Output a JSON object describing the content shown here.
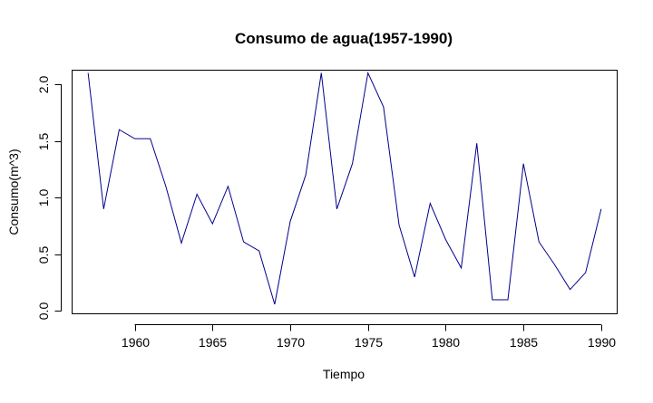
{
  "chart_data": {
    "type": "line",
    "title": "Consumo de agua(1957-1990)",
    "xlabel": "Tiempo",
    "ylabel": "Consumo(m^3)",
    "xlim": [
      1956,
      1991
    ],
    "ylim": [
      -0.02,
      2.12
    ],
    "xticks": [
      1960,
      1965,
      1970,
      1975,
      1980,
      1985,
      1990
    ],
    "xtick_labels": [
      "1960",
      "1965",
      "1970",
      "1975",
      "1980",
      "1985",
      "1990"
    ],
    "yticks": [
      0.0,
      0.5,
      1.0,
      1.5,
      2.0
    ],
    "ytick_labels": [
      "0.0",
      "0.5",
      "1.0",
      "1.5",
      "2.0"
    ],
    "grid": false,
    "series": [
      {
        "color": "#00008b",
        "x": [
          1957,
          1958,
          1959,
          1960,
          1961,
          1962,
          1963,
          1964,
          1965,
          1966,
          1967,
          1968,
          1969,
          1970,
          1971,
          1972,
          1973,
          1974,
          1975,
          1976,
          1977,
          1978,
          1979,
          1980,
          1981,
          1982,
          1983,
          1984,
          1985,
          1986,
          1987,
          1988,
          1989,
          1990
        ],
        "y": [
          2.1,
          0.9,
          1.6,
          1.52,
          1.52,
          1.1,
          0.6,
          1.03,
          0.77,
          1.1,
          0.61,
          0.53,
          0.06,
          0.79,
          1.2,
          2.1,
          0.9,
          1.3,
          2.1,
          1.8,
          0.76,
          0.3,
          0.95,
          0.63,
          0.38,
          1.48,
          0.1,
          0.1,
          1.3,
          0.61,
          0.41,
          0.19,
          0.34,
          0.9
        ]
      }
    ]
  }
}
